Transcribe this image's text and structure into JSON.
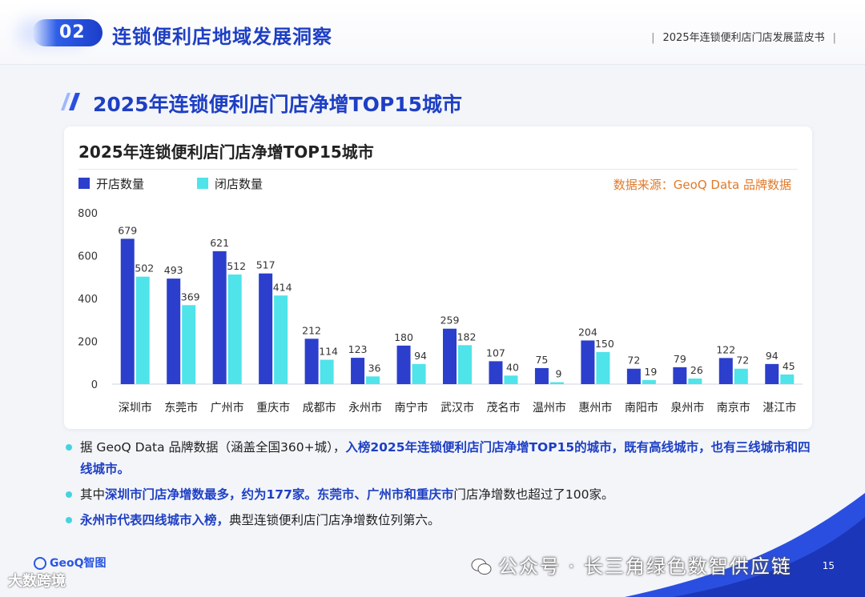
{
  "header": {
    "section_number": "02",
    "section_title": "连锁便利店地域发展洞察",
    "report_title": "2025年连锁便利店门店发展蓝皮书"
  },
  "section_heading": "2025年连锁便利店门店净增TOP15城市",
  "source_note": "数据来源：GeoQ Data 品牌数据",
  "colors": {
    "open": "#2b3fcc",
    "close": "#4fe3ea",
    "accent": "#1e3fc4",
    "source": "#e07a2a"
  },
  "chart_data": {
    "type": "bar",
    "title": "2025年连锁便利店门店净增TOP15城市",
    "categories": [
      "深圳市",
      "东莞市",
      "广州市",
      "重庆市",
      "成都市",
      "永州市",
      "南宁市",
      "武汉市",
      "茂名市",
      "温州市",
      "惠州市",
      "南阳市",
      "泉州市",
      "南京市",
      "湛江市"
    ],
    "series": [
      {
        "name": "开店数量",
        "values": [
          679,
          493,
          621,
          517,
          212,
          123,
          180,
          259,
          107,
          75,
          204,
          72,
          79,
          122,
          94
        ]
      },
      {
        "name": "闭店数量",
        "values": [
          502,
          369,
          512,
          414,
          114,
          36,
          94,
          182,
          40,
          9,
          150,
          19,
          26,
          72,
          45
        ]
      }
    ],
    "ylim": [
      0,
      800
    ],
    "yticks": [
      "0",
      "200",
      "400",
      "600",
      "800"
    ],
    "legend_position": "top-left",
    "grid": false
  },
  "bullets": [
    {
      "parts": [
        {
          "text": "据 GeoQ Data 品牌数据（涵盖全国360+城），",
          "hl": false
        },
        {
          "text": "入榜2025年连锁便利店门店净增TOP15的城市，既有高线城市，也有三线城市和四线城市。",
          "hl": true
        }
      ]
    },
    {
      "parts": [
        {
          "text": "其中",
          "hl": false
        },
        {
          "text": "深圳市门店净增数最多，约为177家。东莞市、广州市和重庆市",
          "hl": true
        },
        {
          "text": "门店净增数也超过了100家。",
          "hl": false
        }
      ]
    },
    {
      "parts": [
        {
          "text": "永州市代表四线城市入榜，",
          "hl": true
        },
        {
          "text": "典型连锁便利店门店净增数位列第六。",
          "hl": false
        }
      ]
    }
  ],
  "footer": {
    "logo_text": "GeoQ智图",
    "watermark_left": "大数跨境",
    "watermark_right": "公众号 · 长三角绿色数智供应链",
    "page_number": "15"
  }
}
